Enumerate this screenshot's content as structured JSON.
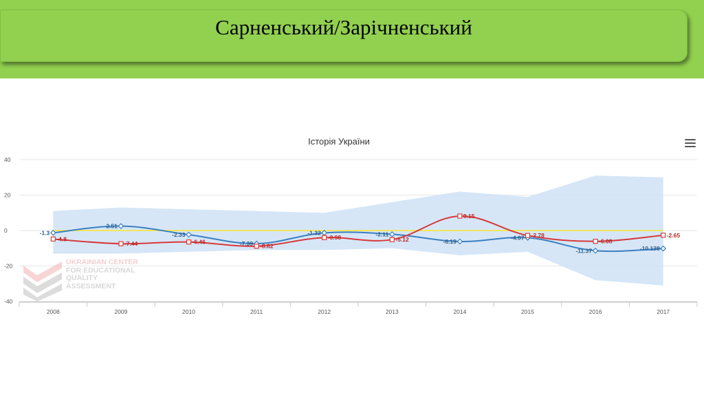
{
  "slide": {
    "title": "Сарненський/Зарічненський"
  },
  "watermark": {
    "lines": [
      "UKRAINIAN CENTER",
      "FOR EDUCATIONAL",
      "QUALITY",
      "ASSESSMENT"
    ]
  },
  "colors": {
    "banner": "#92d050",
    "series_blue": "#3a7fc1",
    "series_red": "#d63a3a",
    "band": "#cfe2f6",
    "zero_line": "#f2e65a"
  },
  "icons": {
    "menu": "hamburger-menu-icon"
  },
  "chart_data": {
    "type": "line",
    "title": "Історія України",
    "x": [
      "2008",
      "2009",
      "2010",
      "2011",
      "2012",
      "2013",
      "2014",
      "2015",
      "2016",
      "2017"
    ],
    "ylim": [
      -40,
      40
    ],
    "yticks": [
      40,
      20,
      0,
      -20,
      -40
    ],
    "grid": true,
    "series": [
      {
        "values": [
          -1.3,
          2.51,
          -2.33,
          -7.39,
          -1.32,
          -2.11,
          -6.19,
          -4.07,
          -11.37,
          -10.138
        ],
        "labels": [
          "-1.3",
          "2.51",
          "-2.33",
          "-7.39",
          "-1.32",
          "-2.11",
          "-6.19",
          "-4.07",
          "-11.37",
          "-10.138"
        ],
        "color": "#3a7fc1",
        "marker": "diamond"
      },
      {
        "values": [
          -4.8,
          -7.44,
          -6.46,
          -8.82,
          -3.98,
          -5.12,
          8.15,
          -2.78,
          -6.08,
          -2.65
        ],
        "labels": [
          "-4.8",
          "-7.44",
          "-6.46",
          "-8.82",
          "-3.98",
          "-5.12",
          "8.15",
          "-2.78",
          "-6.08",
          "-2.65"
        ],
        "color": "#d63a3a",
        "marker": "square"
      }
    ],
    "band": {
      "upper": [
        11,
        13,
        12,
        11,
        10,
        16,
        22,
        19,
        31,
        30
      ],
      "lower": [
        -13,
        -13,
        -12,
        -11,
        -11,
        -10,
        -14,
        -12,
        -28,
        -31
      ]
    },
    "reference_line": 0
  }
}
